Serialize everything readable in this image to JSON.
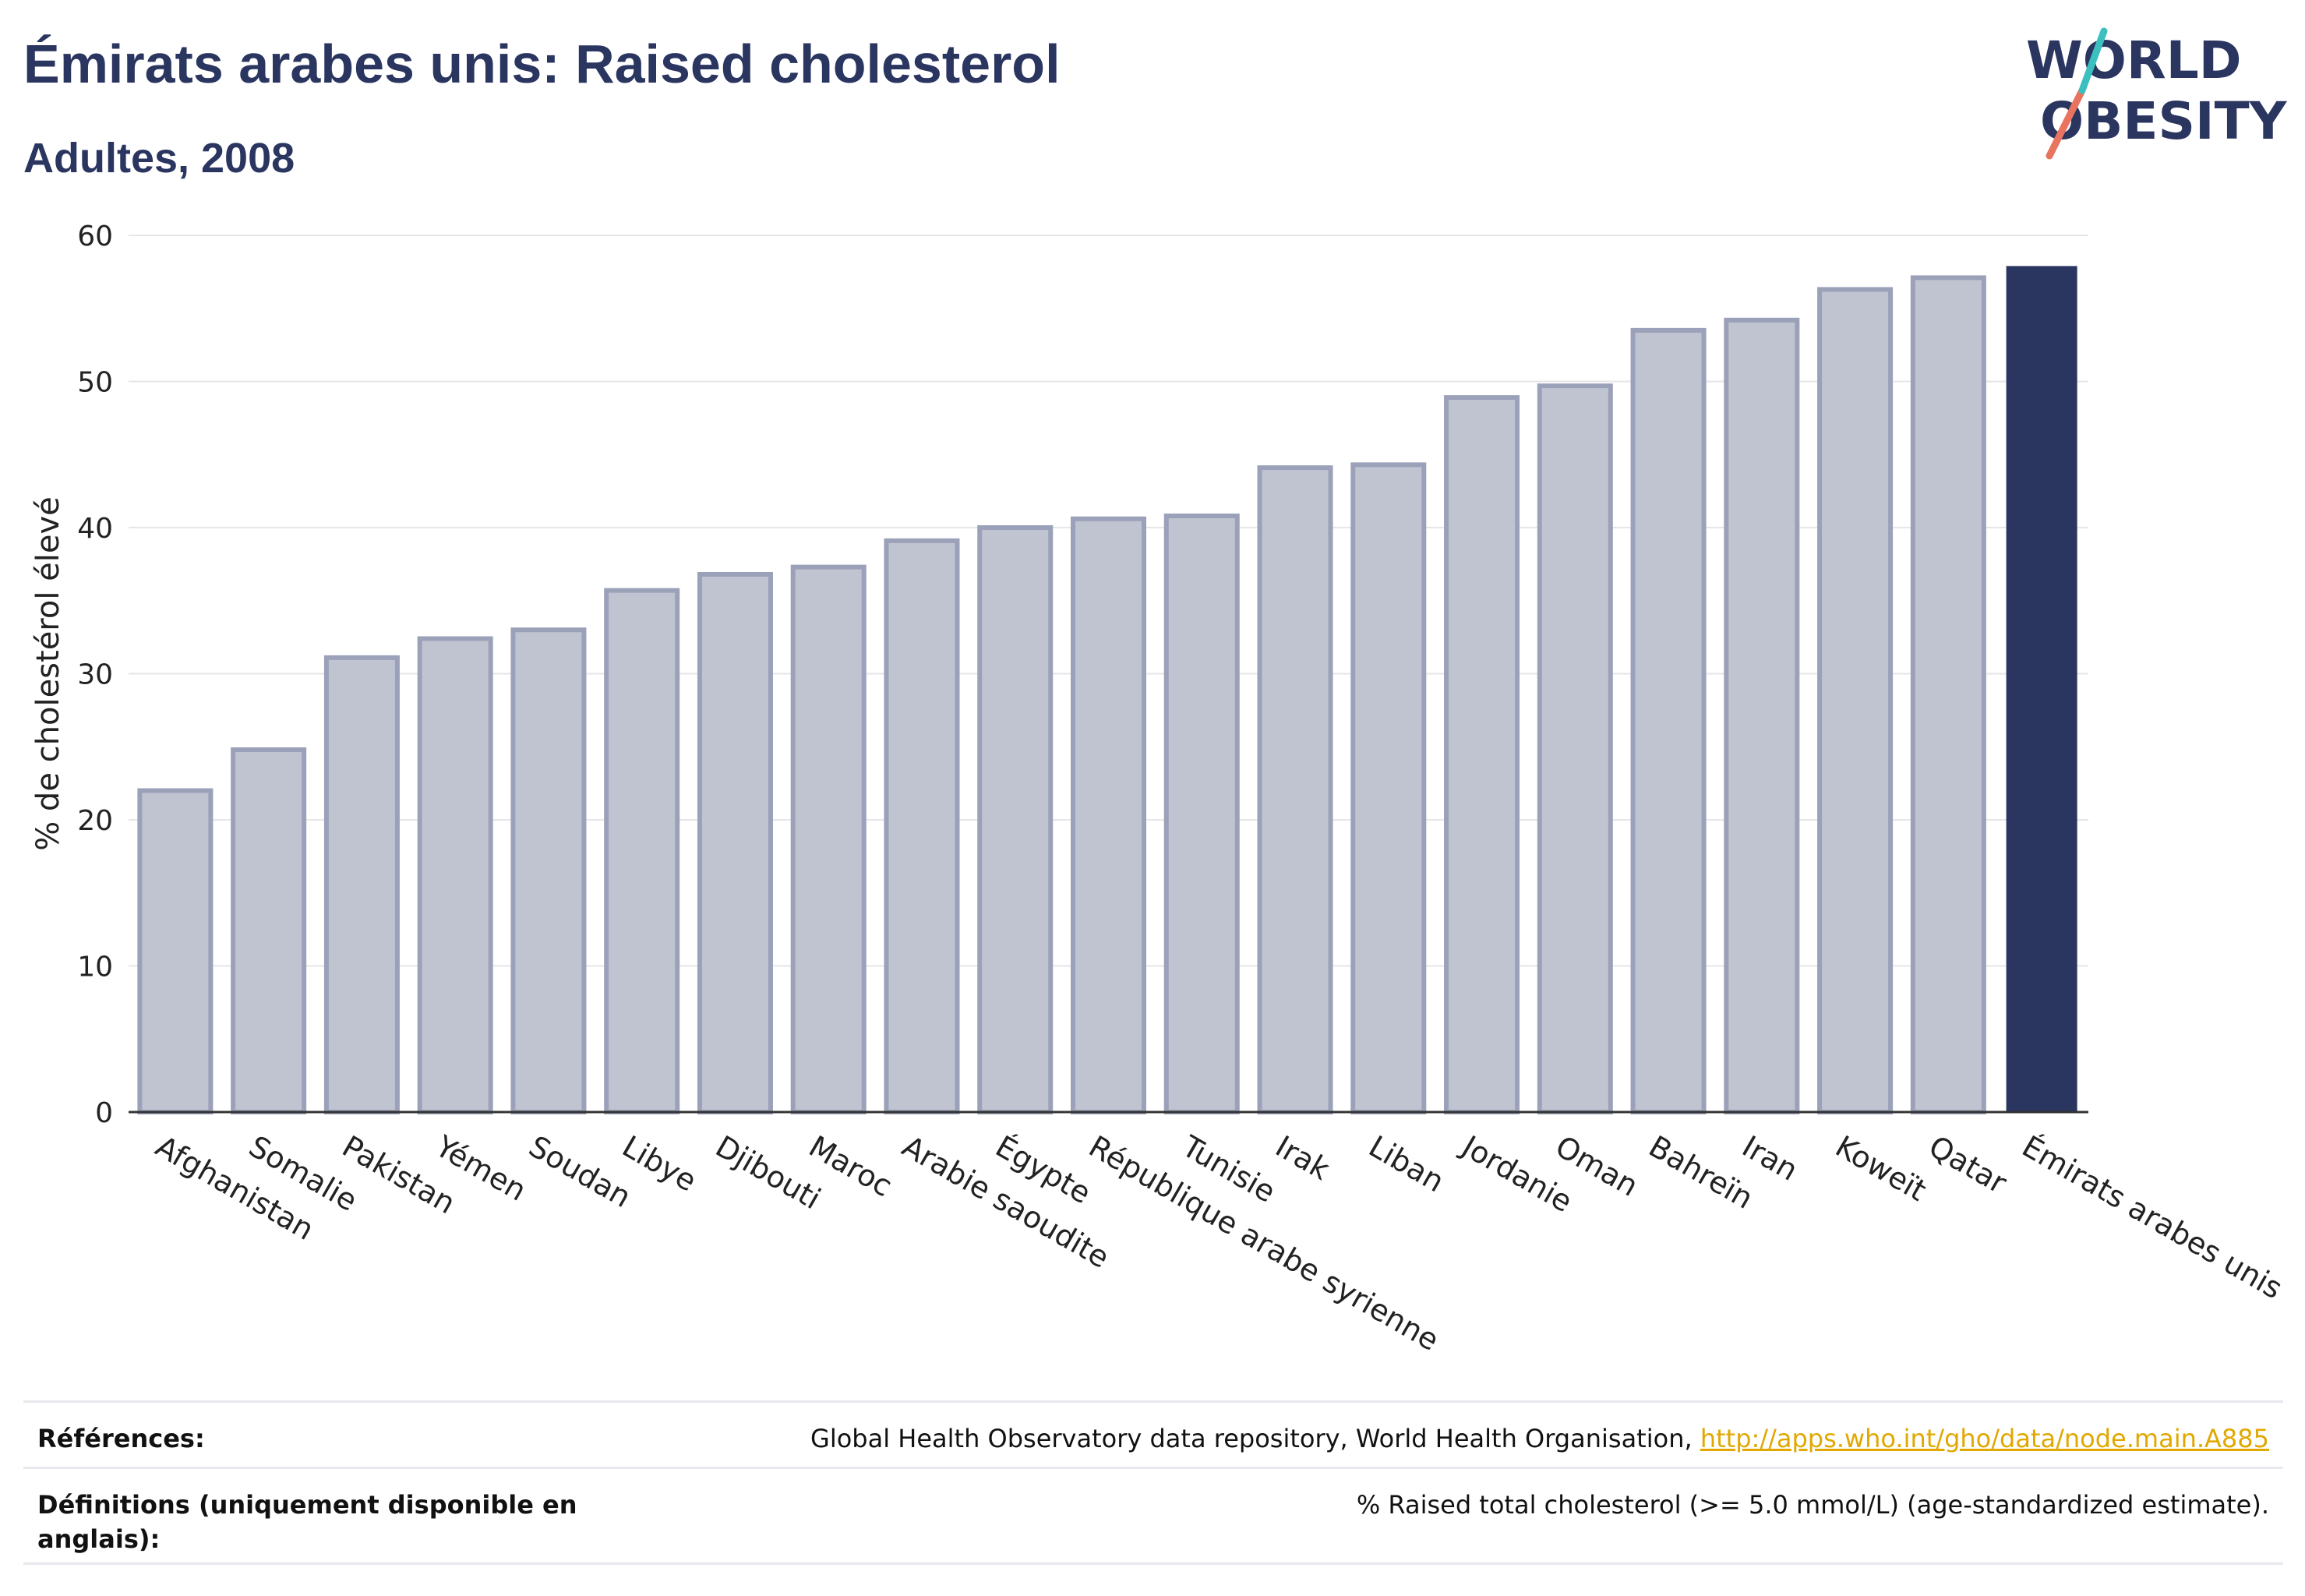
{
  "header": {
    "title": "Émirats arabes unis: Raised cholesterol",
    "subtitle": "Adultes, 2008"
  },
  "logo": {
    "line1": "WORLD",
    "line2": "OBESITY",
    "accent_color": "#e8735f",
    "accent_color2": "#3bbfbf"
  },
  "chart_data": {
    "type": "bar",
    "ylabel": "% de cholestérol élevé",
    "xlabel": "",
    "ylim": [
      0,
      60
    ],
    "yticks": [
      0,
      10,
      20,
      30,
      40,
      50,
      60
    ],
    "grid": true,
    "categories": [
      "Afghanistan",
      "Somalie",
      "Pakistan",
      "Yémen",
      "Soudan",
      "Libye",
      "Djibouti",
      "Maroc",
      "Arabie saoudite",
      "Égypte",
      "République arabe syrienne",
      "Tunisie",
      "Irak",
      "Liban",
      "Jordanie",
      "Oman",
      "Bahreïn",
      "Iran",
      "Koweït",
      "Qatar",
      "Émirats arabes unis"
    ],
    "values": [
      22.0,
      24.8,
      31.1,
      32.4,
      33.0,
      35.7,
      36.8,
      37.3,
      39.1,
      40.0,
      40.6,
      40.8,
      44.1,
      44.3,
      48.9,
      49.7,
      53.5,
      54.2,
      56.3,
      57.1,
      57.9
    ],
    "highlight": "Émirats arabes unis",
    "colors": {
      "base_fill": "#c0c4d1",
      "base_stroke": "#9ba1b9",
      "highlight": "#2a3560",
      "grid": "#e6e6ea",
      "axis": "#333333"
    }
  },
  "footer": {
    "references_label": "Références:",
    "references_text": "Global Health Observatory data repository, World Health Organisation,",
    "references_link": "http://apps.who.int/gho/data/node.main.A885",
    "definitions_label": "Définitions (uniquement disponible en anglais):",
    "definitions_text": "% Raised total cholesterol (>= 5.0 mmol/L) (age-standardized estimate)."
  }
}
